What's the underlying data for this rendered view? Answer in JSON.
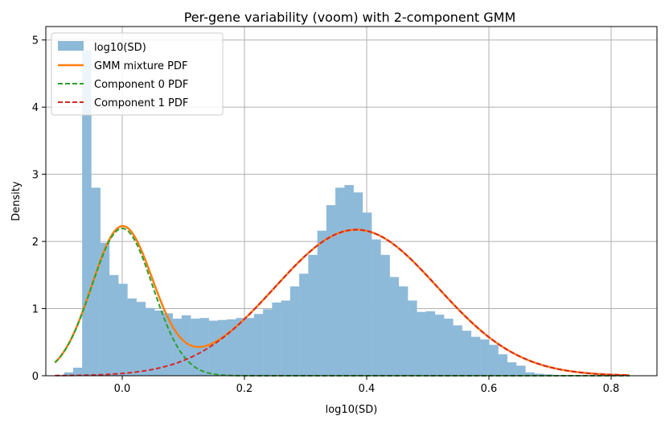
{
  "chart_data": {
    "type": "histogram",
    "title": "Per-gene variability (voom) with 2-component GMM",
    "xlabel": "log10(SD)",
    "ylabel": "Density",
    "xlim": [
      -0.125,
      0.875
    ],
    "ylim": [
      0,
      5.2
    ],
    "xticks": [
      0.0,
      0.2,
      0.4,
      0.6,
      0.8
    ],
    "xtick_labels": [
      "0.0",
      "0.2",
      "0.4",
      "0.6",
      "0.8"
    ],
    "yticks": [
      0,
      1,
      2,
      3,
      4,
      5
    ],
    "ytick_labels": [
      "0",
      "1",
      "2",
      "3",
      "4",
      "5"
    ],
    "grid": true,
    "legend_position": "upper-left",
    "colors": {
      "histogram": "#8ebad9",
      "mixture": "#ff7f0e",
      "component0": "#2ca02c",
      "component1": "#d62728"
    },
    "histogram": {
      "name": "log10(SD)",
      "bin_start": -0.11,
      "bin_width": 0.0148,
      "densities": [
        0.01,
        0.05,
        0.12,
        4.85,
        2.8,
        1.98,
        1.5,
        1.37,
        1.15,
        1.1,
        1.01,
        0.97,
        0.93,
        0.85,
        0.9,
        0.85,
        0.86,
        0.82,
        0.83,
        0.84,
        0.86,
        0.86,
        0.92,
        0.99,
        1.09,
        1.12,
        1.33,
        1.52,
        1.8,
        2.16,
        2.54,
        2.8,
        2.84,
        2.73,
        2.43,
        2.03,
        1.8,
        1.47,
        1.33,
        1.12,
        0.95,
        0.96,
        0.91,
        0.85,
        0.75,
        0.67,
        0.58,
        0.54,
        0.46,
        0.32,
        0.2,
        0.15,
        0.05,
        0.03,
        0.02,
        0.01,
        0.01,
        0.01,
        0.01,
        0.0,
        0.0,
        0.0,
        0.0
      ]
    },
    "curves": [
      {
        "name": "GMM mixture PDF",
        "style": "solid",
        "x_range": [
          -0.11,
          0.83
        ]
      },
      {
        "name": "Component 0 PDF",
        "style": "dashed",
        "x_range": [
          -0.11,
          0.83
        ]
      },
      {
        "name": "Component 1 PDF",
        "style": "dashed",
        "x_range": [
          -0.11,
          0.83
        ]
      }
    ],
    "gmm": {
      "components": [
        {
          "weight": 0.275,
          "mean": 0.0,
          "sd": 0.05
        },
        {
          "weight": 0.725,
          "mean": 0.383,
          "sd": 0.133
        }
      ]
    }
  }
}
